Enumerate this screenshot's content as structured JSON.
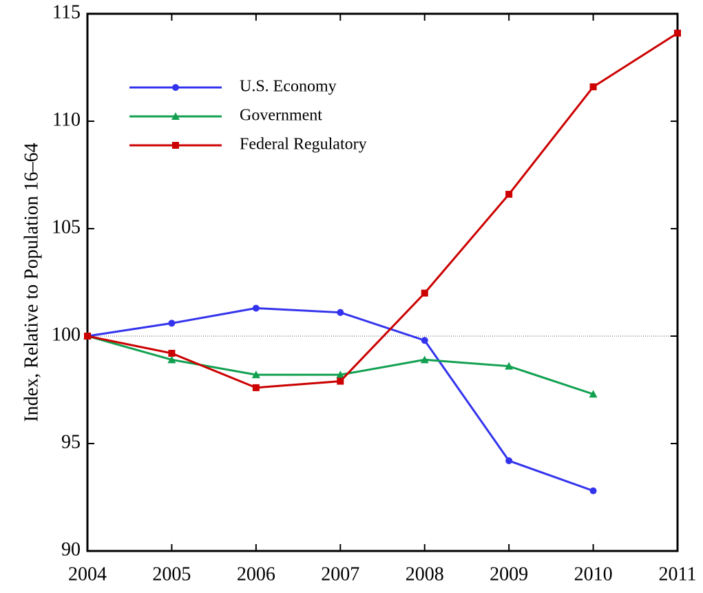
{
  "chart_data": {
    "type": "line",
    "y_label": "Index, Relative to Population 16–64",
    "x": [
      2004,
      2005,
      2006,
      2007,
      2008,
      2009,
      2010,
      2011
    ],
    "xlim": [
      2004,
      2011
    ],
    "xticks": [
      2004,
      2005,
      2006,
      2007,
      2008,
      2009,
      2010,
      2011
    ],
    "ylim": [
      90,
      115
    ],
    "yticks": [
      90,
      95,
      100,
      105,
      110,
      115
    ],
    "reference_line": 100,
    "legend": "upper left",
    "series": [
      {
        "name": "U.S. Economy",
        "color": "#3333ee",
        "marker": "circle",
        "values": [
          100,
          100.6,
          101.3,
          101.1,
          99.8,
          94.2,
          92.8,
          null
        ]
      },
      {
        "name": "Government",
        "color": "#11a050",
        "marker": "triangle",
        "values": [
          100,
          98.9,
          98.2,
          98.2,
          98.9,
          98.6,
          97.3,
          null
        ]
      },
      {
        "name": "Federal Regulatory",
        "color": "#cc0000",
        "marker": "square",
        "values": [
          100,
          99.2,
          97.6,
          97.9,
          102.0,
          106.6,
          111.6,
          114.1
        ]
      }
    ]
  }
}
